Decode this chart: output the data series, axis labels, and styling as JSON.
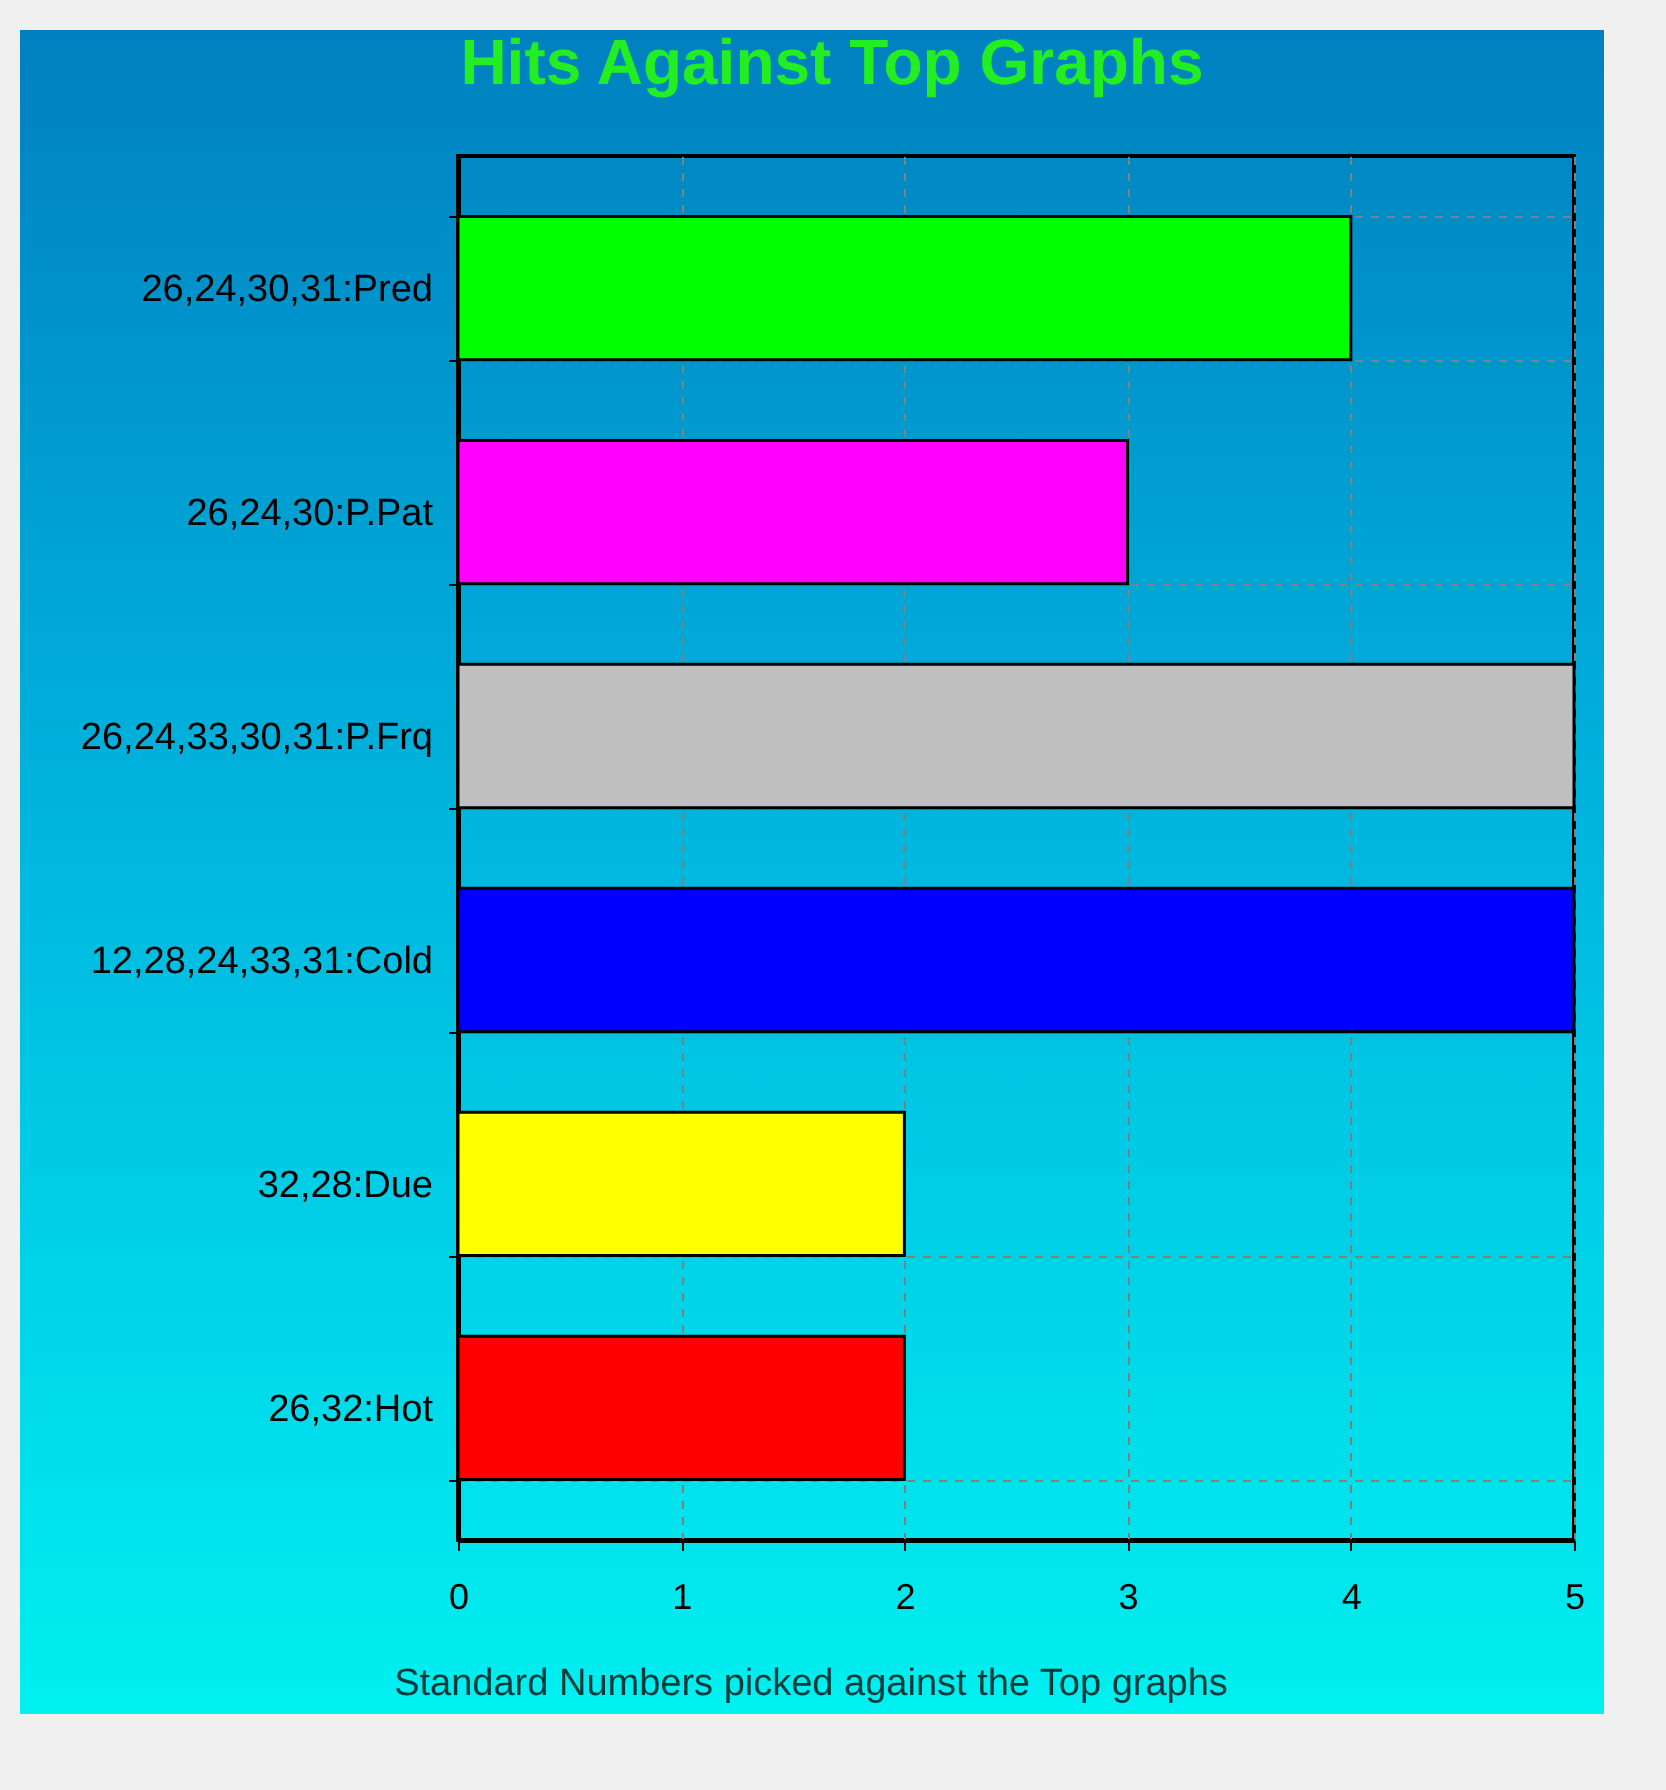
{
  "chart_data": {
    "type": "bar",
    "orientation": "horizontal",
    "title": "Hits Against Top Graphs",
    "xlabel": "Standard Numbers picked against the Top graphs",
    "categories": [
      "26,24,30,31:Pred",
      "26,24,30:P.Pat",
      "26,24,33,30,31:P.Frq",
      "12,28,24,33,31:Cold",
      "32,28:Due",
      "26,32:Hot"
    ],
    "values": [
      4,
      3,
      5,
      5,
      2,
      2
    ],
    "colors": [
      "#00ff00",
      "#ff00ff",
      "#c0c0c0",
      "#0000ff",
      "#ffff00",
      "#ff0000"
    ],
    "xlim": [
      0,
      5
    ],
    "xticks": [
      0,
      1,
      2,
      3,
      4,
      5
    ],
    "grid": true
  }
}
